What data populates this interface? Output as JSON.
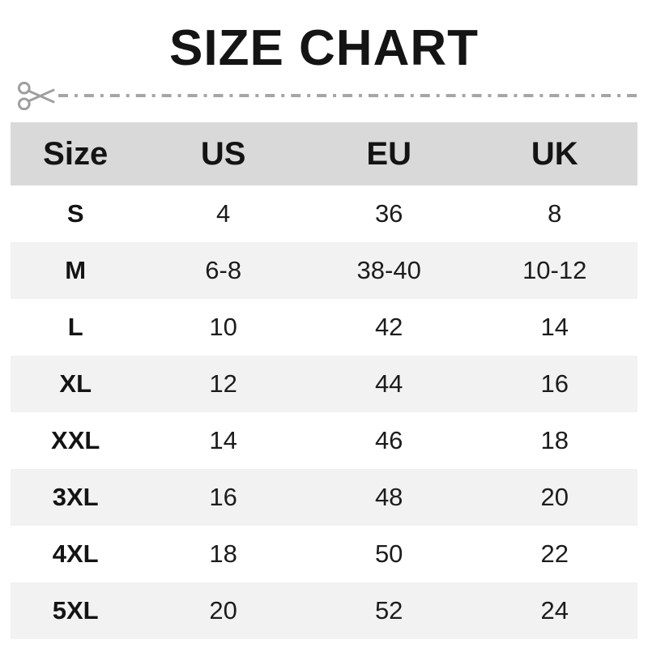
{
  "page": {
    "title": "SIZE CHART"
  },
  "divider": {
    "icon": "scissors-icon",
    "pattern": "dash-dot"
  },
  "chart_data": {
    "type": "table",
    "title": "SIZE CHART",
    "columns": [
      "Size",
      "US",
      "EU",
      "UK"
    ],
    "rows": [
      [
        "S",
        "4",
        "36",
        "8"
      ],
      [
        "M",
        "6-8",
        "38-40",
        "10-12"
      ],
      [
        "L",
        "10",
        "42",
        "14"
      ],
      [
        "XL",
        "12",
        "44",
        "16"
      ],
      [
        "XXL",
        "14",
        "46",
        "18"
      ],
      [
        "3XL",
        "16",
        "48",
        "20"
      ],
      [
        "4XL",
        "18",
        "50",
        "22"
      ],
      [
        "5XL",
        "20",
        "52",
        "24"
      ]
    ]
  },
  "colors": {
    "header_bg": "#d9d9d9",
    "row_alt_bg": "#f2f2f2",
    "row_bg": "#ffffff",
    "title_text": "#141414",
    "cell_text": "#1c1c1c",
    "divider_gray": "#a6a6a6",
    "scissors_gray": "#9e9e9e"
  }
}
